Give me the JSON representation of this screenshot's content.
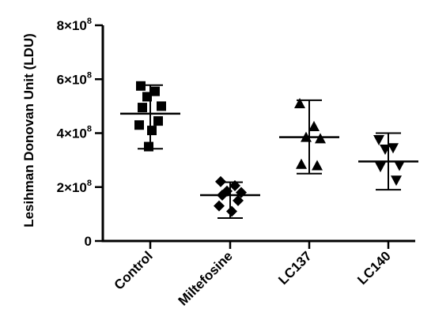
{
  "chart_data": {
    "type": "scatter",
    "ylabel": "Lesihman Donovan Unit (LDU)",
    "xlabel": "",
    "y_exponent": 8,
    "ylim": [
      0,
      8
    ],
    "yticks": [
      {
        "value": 0,
        "mantissa": "0",
        "exp": ""
      },
      {
        "value": 2,
        "mantissa": "2×10",
        "exp": "8"
      },
      {
        "value": 4,
        "mantissa": "4×10",
        "exp": "8"
      },
      {
        "value": 6,
        "mantissa": "6×10",
        "exp": "8"
      },
      {
        "value": 8,
        "mantissa": "8×10",
        "exp": "8"
      }
    ],
    "categories": [
      "Control",
      "Miltefosine",
      "LC137",
      "LC140"
    ],
    "groups": [
      {
        "name": "Control",
        "marker": "square",
        "points": [
          5.75,
          5.55,
          5.35,
          5.0,
          4.95,
          4.45,
          4.3,
          4.1,
          3.5
        ],
        "mean": 4.72,
        "whisker": [
          3.42,
          5.78
        ]
      },
      {
        "name": "Miltefosine",
        "marker": "diamond",
        "points": [
          2.2,
          2.05,
          1.85,
          1.8,
          1.7,
          1.5,
          1.3,
          1.1
        ],
        "mean": 1.7,
        "whisker": [
          0.85,
          2.18
        ]
      },
      {
        "name": "LC137",
        "marker": "triangle-up",
        "points": [
          5.1,
          4.25,
          3.85,
          3.8,
          2.85,
          2.8
        ],
        "mean": 3.85,
        "whisker": [
          2.5,
          5.22
        ]
      },
      {
        "name": "LC140",
        "marker": "triangle-down",
        "points": [
          3.75,
          3.45,
          3.4,
          2.8,
          2.75,
          2.25
        ],
        "mean": 2.95,
        "whisker": [
          1.9,
          4.0
        ]
      }
    ]
  }
}
